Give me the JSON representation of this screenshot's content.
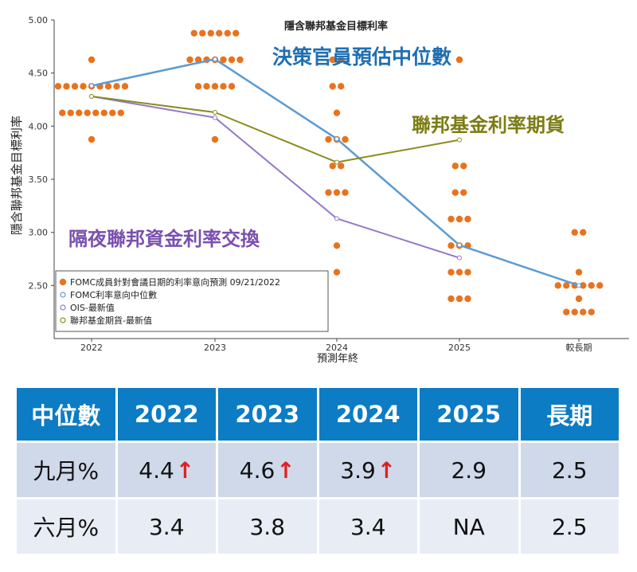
{
  "chart_data": {
    "type": "scatter",
    "title": "隱含聯邦基金目標利率",
    "ylabel": "隱含聯邦基金目標利率",
    "xlabel": "預測年終",
    "categories": [
      "2022",
      "2023",
      "2024",
      "2025",
      "較長期"
    ],
    "ylim": [
      2.0,
      5.0
    ],
    "yticks": [
      "5.00",
      "4.50",
      "4.00",
      "3.50",
      "3.00",
      "2.50"
    ],
    "dots": [
      [
        4.625,
        4.375,
        4.375,
        4.375,
        4.375,
        4.375,
        4.375,
        4.375,
        4.375,
        4.375,
        4.125,
        4.125,
        4.125,
        4.125,
        4.125,
        4.125,
        4.125,
        4.125,
        3.875
      ],
      [
        4.875,
        4.875,
        4.875,
        4.875,
        4.875,
        4.875,
        4.625,
        4.625,
        4.625,
        4.625,
        4.625,
        4.625,
        4.625,
        4.375,
        4.375,
        4.375,
        4.375,
        4.375,
        3.875
      ],
      [
        4.625,
        4.625,
        4.375,
        4.375,
        4.125,
        3.875,
        3.875,
        3.875,
        3.625,
        3.625,
        3.375,
        3.375,
        3.375,
        2.875,
        2.625
      ],
      [
        4.625,
        3.625,
        3.625,
        3.375,
        3.375,
        3.125,
        3.125,
        3.125,
        2.875,
        2.875,
        2.875,
        2.625,
        2.625,
        2.625,
        2.375,
        2.375,
        2.375
      ],
      [
        3.0,
        3.0,
        2.625,
        2.5,
        2.5,
        2.5,
        2.5,
        2.5,
        2.5,
        2.375,
        2.25,
        2.25,
        2.25,
        2.25
      ]
    ],
    "series": [
      {
        "name": "FOMC利率意向中位數",
        "label": "決策官員預估中位數",
        "color": "#5b9bd5",
        "values": [
          4.38,
          4.63,
          3.88,
          2.88,
          2.5
        ]
      },
      {
        "name": "OIS-最新值",
        "label": "隔夜聯邦資金利率交換",
        "color": "#9478c8",
        "values": [
          4.28,
          4.08,
          3.13,
          2.76,
          null
        ]
      },
      {
        "name": "聯邦基金期貨-最新值",
        "label": "聯邦基金利率期貨",
        "color": "#8c8c1e",
        "values": [
          4.28,
          4.13,
          3.66,
          3.87,
          null
        ]
      }
    ],
    "dot_series_name": "FOMC成員針對會議日期的利率意向預測 09/21/2022",
    "dot_color": "#e8731f",
    "legend_position": "bottom-left",
    "annotation_colors": {
      "median": "#1f6fb2",
      "ois": "#7a4fb0",
      "futures": "#7c7c14"
    }
  },
  "table": {
    "headers": [
      "中位數",
      "2022",
      "2023",
      "2024",
      "2025",
      "長期"
    ],
    "rows": [
      {
        "label": "九月%",
        "cells": [
          {
            "value": "4.4",
            "arrow": "↑"
          },
          {
            "value": "4.6",
            "arrow": "↑"
          },
          {
            "value": "3.9",
            "arrow": "↑"
          },
          {
            "value": "2.9",
            "arrow": ""
          },
          {
            "value": "2.5",
            "arrow": ""
          }
        ]
      },
      {
        "label": "六月%",
        "cells": [
          {
            "value": "3.4",
            "arrow": ""
          },
          {
            "value": "3.8",
            "arrow": ""
          },
          {
            "value": "3.4",
            "arrow": ""
          },
          {
            "value": "NA",
            "arrow": ""
          },
          {
            "value": "2.5",
            "arrow": ""
          }
        ]
      }
    ]
  }
}
